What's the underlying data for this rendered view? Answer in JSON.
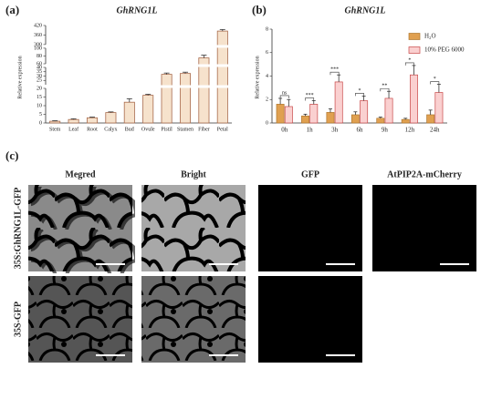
{
  "chart_data": [
    {
      "type": "broken-bar",
      "panel_label": "(a)",
      "title": "GhRNG1L",
      "y_label": "Relative expression",
      "categories": [
        "Stem",
        "Leaf",
        "Root",
        "Calyx",
        "Bud",
        "Ovule",
        "Pistil",
        "Stamen",
        "Fiber",
        "Petal"
      ],
      "values": [
        1,
        2,
        3,
        6,
        12,
        16,
        32,
        33,
        75,
        385
      ],
      "errors": [
        0.3,
        0.4,
        0.4,
        0.4,
        2,
        0.6,
        1.5,
        1.5,
        7,
        10
      ],
      "color": "#f6e2cc",
      "edge_color": "#a86a4c",
      "ylim": [
        0,
        420
      ],
      "y_segments": [
        {
          "ylim": [
            0,
            20
          ],
          "yticks": [
            0,
            5,
            10,
            15,
            20
          ]
        },
        {
          "ylim": [
            20,
            40
          ],
          "yticks": [
            25,
            30,
            35,
            40
          ]
        },
        {
          "ylim": [
            60,
            100
          ],
          "yticks": [
            60,
            80,
            100
          ]
        },
        {
          "ylim": [
            300,
            420
          ],
          "yticks": [
            300,
            360,
            420
          ]
        }
      ]
    },
    {
      "type": "grouped-bar",
      "panel_label": "(b)",
      "title": "GhRNG1L",
      "y_label": "Relative expression",
      "categories": [
        "0h",
        "1h",
        "3h",
        "6h",
        "9h",
        "12h",
        "24h"
      ],
      "series": [
        {
          "name": "H₂O",
          "color": "#e0a050",
          "edge_color": "#b07830",
          "values": [
            1.6,
            0.6,
            0.9,
            0.7,
            0.4,
            0.3,
            0.7
          ],
          "errors": [
            0.5,
            0.15,
            0.3,
            0.25,
            0.1,
            0.1,
            0.4
          ]
        },
        {
          "name": "10% PEG 6000",
          "color": "#fad0d0",
          "edge_color": "#c84848",
          "values": [
            1.4,
            1.6,
            3.5,
            1.9,
            2.1,
            4.1,
            2.6
          ],
          "errors": [
            0.6,
            0.3,
            0.6,
            0.4,
            0.6,
            0.8,
            0.7
          ]
        }
      ],
      "annotations": [
        "ns",
        "***",
        "***",
        "*",
        "**",
        "*",
        "*"
      ],
      "ylim": [
        0,
        8
      ],
      "yticks": [
        0,
        2,
        4,
        6,
        8
      ],
      "legend": "upper-right"
    }
  ],
  "panel_c": {
    "label": "(c)",
    "columns": [
      "Megred",
      "Bright",
      "GFP",
      "AtPIP2A-mCherry"
    ],
    "rows": [
      "35S:GhRNG1L-GFP",
      "35S-GFP"
    ]
  }
}
